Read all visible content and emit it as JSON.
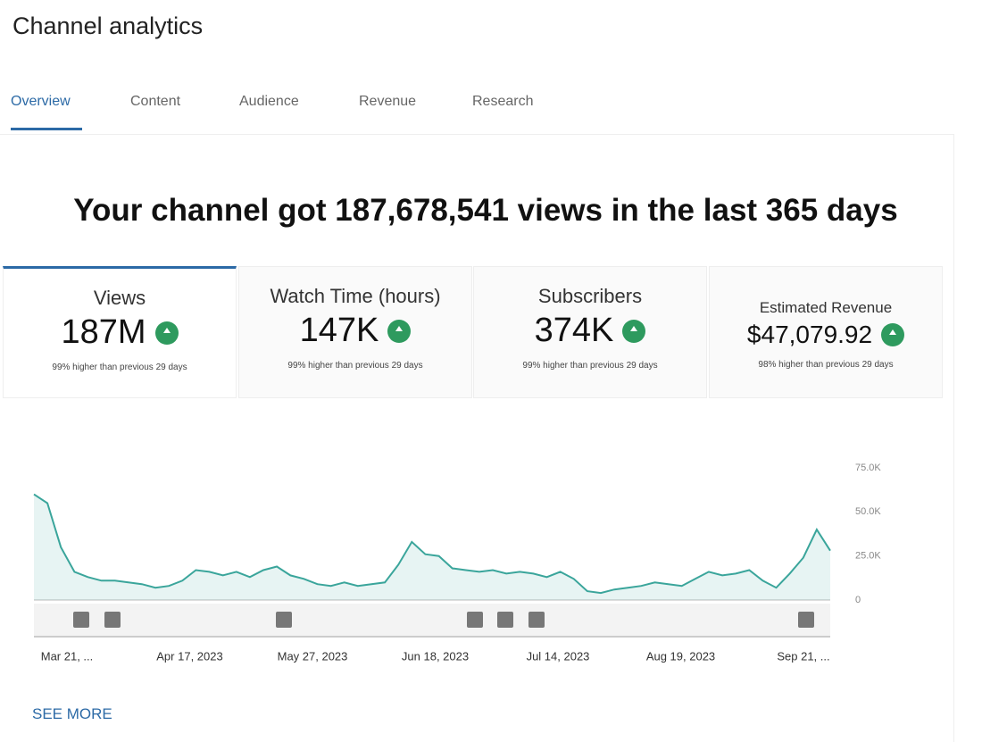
{
  "header": {
    "title": "Channel analytics"
  },
  "tabs": [
    "Overview",
    "Content",
    "Audience",
    "Revenue",
    "Research"
  ],
  "headline": "Your channel got 187,678,541 views in the last 365 days",
  "cards": [
    {
      "title": "Views",
      "value": "187M",
      "change": "99% higher than previous 29 days"
    },
    {
      "title": "Watch Time (hours)",
      "value": "147K",
      "change": "99% higher than previous 29 days"
    },
    {
      "title": "Subscribers",
      "value": "374K",
      "change": "99% higher than previous 29 days"
    },
    {
      "title": "Estimated Revenue",
      "value": "$47,079.92",
      "change": "98% higher than previous 29 days"
    }
  ],
  "chart_data": {
    "type": "line",
    "x_labels": [
      "Mar 21, ...",
      "Apr 17, 2023",
      "May 27, 2023",
      "Jun 18, 2023",
      "Jul 14, 2023",
      "Aug 19, 2023",
      "Sep 21, ..."
    ],
    "series": [
      {
        "color": "#3aa59b",
        "values": [
          60000,
          55000,
          30000,
          16000,
          13000,
          11000,
          11000,
          10000,
          9000,
          7000,
          8000,
          11000,
          17000,
          16000,
          14000,
          16000,
          13000,
          17000,
          19000,
          14000,
          12000,
          9000,
          8000,
          10000,
          8000,
          9000,
          10000,
          20000,
          33000,
          26000,
          25000,
          18000,
          17000,
          16000,
          17000,
          15000,
          16000,
          15000,
          13000,
          16000,
          12000,
          5000,
          4000,
          6000,
          7000,
          8000,
          10000,
          9000,
          8000,
          12000,
          16000,
          14000,
          15000,
          17000,
          11000,
          7000,
          15000,
          24000,
          40000,
          28000
        ]
      }
    ],
    "ylim": [
      0,
      75000
    ],
    "yticks": [
      0,
      {
        "value": 25000,
        "label": "25.0K"
      },
      {
        "value": 50000,
        "label": "50.0K"
      },
      {
        "value": 75000,
        "label": "75.0K"
      }
    ]
  },
  "see_more": "SEE MORE"
}
